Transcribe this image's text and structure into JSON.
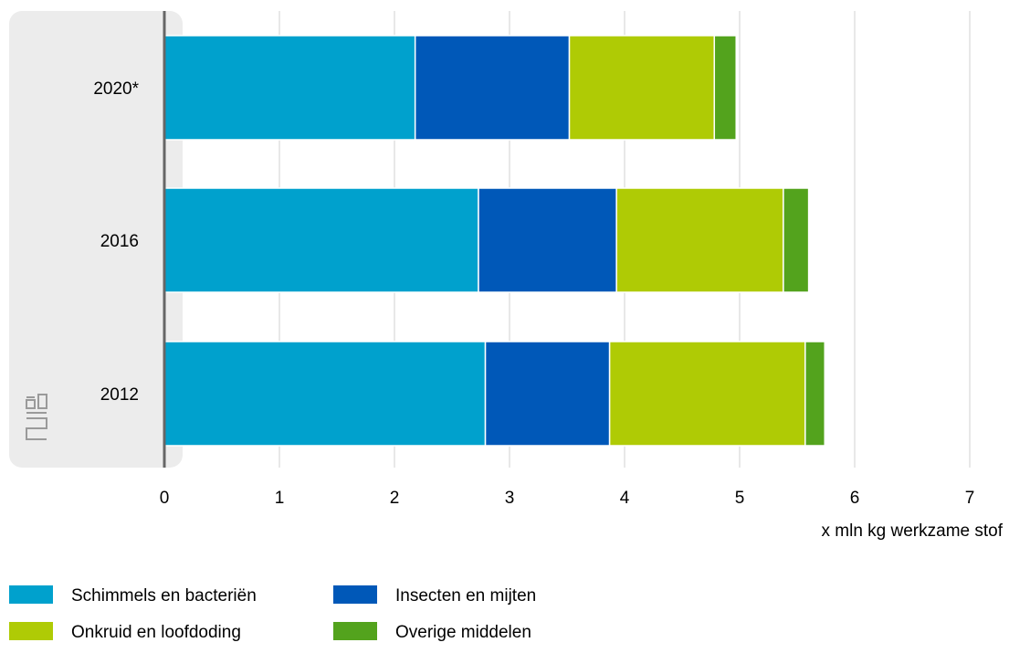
{
  "chart_data": {
    "type": "bar",
    "orientation": "horizontal",
    "stacked": true,
    "title": "",
    "ylabel": "",
    "xlabel": "x mln kg werkzame stof",
    "categories": [
      "2020*",
      "2016",
      "2012"
    ],
    "xlim": [
      0,
      7
    ],
    "xticks": [
      "0",
      "1",
      "2",
      "3",
      "4",
      "5",
      "6",
      "7"
    ],
    "grid": true,
    "legend_position": "bottom-left",
    "series": [
      {
        "name": "Schimmels en bacteriën",
        "color": "#00a1cd",
        "values": [
          2.18,
          2.73,
          2.79
        ]
      },
      {
        "name": "Insecten en mijten",
        "color": "#0058b8",
        "values": [
          1.34,
          1.2,
          1.08
        ]
      },
      {
        "name": "Onkruid en loofdoding",
        "color": "#afcb05",
        "values": [
          1.26,
          1.45,
          1.7
        ]
      },
      {
        "name": "Overige middelen",
        "color": "#53a31d",
        "values": [
          0.19,
          0.22,
          0.17
        ]
      }
    ],
    "logo": "cbs-logo"
  }
}
